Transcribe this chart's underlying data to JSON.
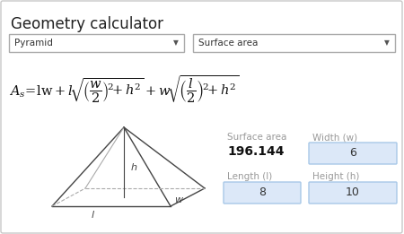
{
  "title": "Geometry calculator",
  "dropdown1": "Pyramid",
  "dropdown2": "Surface area",
  "result_label": "Surface area",
  "result_value": "196.144",
  "field1_label": "Width (w)",
  "field1_value": "6",
  "field2_label": "Length (l)",
  "field2_value": "8",
  "field3_label": "Height (h)",
  "field3_value": "10",
  "bg_color": "#ffffff",
  "border_color": "#c8c8c8",
  "title_color": "#222222",
  "label_color": "#999999",
  "bold_value_color": "#111111",
  "dropdown_border": "#aaaaaa",
  "input_bg": "#dce8f8",
  "input_border": "#a8c8e8"
}
